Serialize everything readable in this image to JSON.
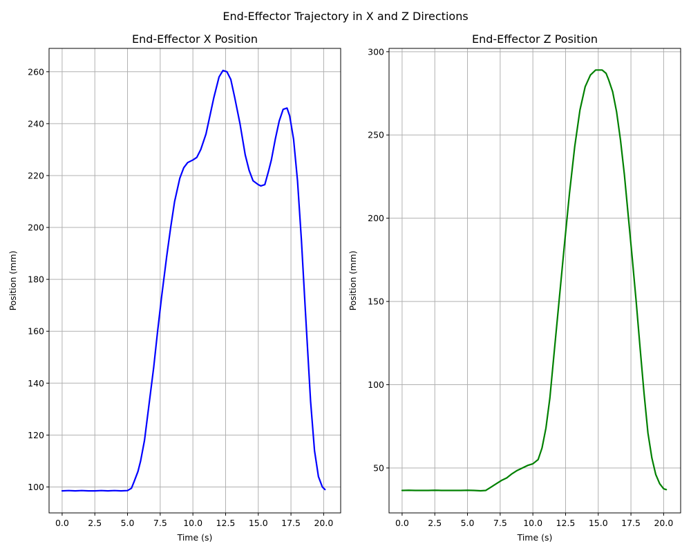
{
  "figure": {
    "suptitle": "End-Effector Trajectory in X and Z Directions"
  },
  "chart_data": [
    {
      "type": "line",
      "title": "End-Effector X Position",
      "xlabel": "Time (s)",
      "ylabel": "Position (mm)",
      "xlim": [
        -1.0,
        21.3
      ],
      "ylim": [
        90,
        269
      ],
      "xticks": [
        0.0,
        2.5,
        5.0,
        7.5,
        10.0,
        12.5,
        15.0,
        17.5,
        20.0
      ],
      "xtick_labels": [
        "0.0",
        "2.5",
        "5.0",
        "7.5",
        "10.0",
        "12.5",
        "15.0",
        "17.5",
        "20.0"
      ],
      "yticks": [
        100,
        120,
        140,
        160,
        180,
        200,
        220,
        240,
        260
      ],
      "ytick_labels": [
        "100",
        "120",
        "140",
        "160",
        "180",
        "200",
        "220",
        "240",
        "260"
      ],
      "grid": true,
      "series": [
        {
          "color": "#0000ff",
          "x": [
            0.0,
            0.5,
            1.0,
            1.5,
            2.0,
            2.5,
            3.0,
            3.5,
            4.0,
            4.5,
            5.0,
            5.3,
            5.5,
            5.8,
            6.0,
            6.3,
            6.6,
            7.0,
            7.3,
            7.6,
            8.0,
            8.3,
            8.6,
            9.0,
            9.3,
            9.6,
            10.0,
            10.3,
            10.6,
            11.0,
            11.3,
            11.6,
            12.0,
            12.3,
            12.6,
            12.9,
            13.2,
            13.6,
            14.0,
            14.3,
            14.6,
            15.0,
            15.2,
            15.5,
            15.8,
            16.0,
            16.3,
            16.6,
            16.9,
            17.2,
            17.4,
            17.7,
            18.0,
            18.3,
            18.6,
            19.0,
            19.3,
            19.6,
            19.9,
            20.1
          ],
          "y": [
            98.5,
            98.6,
            98.5,
            98.6,
            98.5,
            98.5,
            98.6,
            98.5,
            98.6,
            98.5,
            98.6,
            99.5,
            102,
            106,
            110,
            118,
            130,
            146,
            160,
            173,
            189,
            200,
            210,
            219,
            223,
            225,
            226,
            227,
            230,
            236,
            243,
            250,
            258,
            260.5,
            260,
            257,
            250,
            240,
            228,
            222,
            218,
            216.5,
            216,
            216.5,
            222,
            226,
            234,
            241,
            245.5,
            246,
            243,
            234,
            218,
            195,
            168,
            133,
            114,
            104,
            100,
            99
          ]
        }
      ]
    },
    {
      "type": "line",
      "title": "End-Effector Z Position",
      "xlabel": "Time (s)",
      "ylabel": "Position (mm)",
      "xlim": [
        -1.0,
        21.3
      ],
      "ylim": [
        23,
        302
      ],
      "xticks": [
        0.0,
        2.5,
        5.0,
        7.5,
        10.0,
        12.5,
        15.0,
        17.5,
        20.0
      ],
      "xtick_labels": [
        "0.0",
        "2.5",
        "5.0",
        "7.5",
        "10.0",
        "12.5",
        "15.0",
        "17.5",
        "20.0"
      ],
      "yticks": [
        50,
        100,
        150,
        200,
        250,
        300
      ],
      "ytick_labels": [
        "50",
        "100",
        "150",
        "200",
        "250",
        "300"
      ],
      "grid": true,
      "series": [
        {
          "color": "#008000",
          "x": [
            0.0,
            0.5,
            1.0,
            1.5,
            2.0,
            2.5,
            3.0,
            3.5,
            4.0,
            4.5,
            5.0,
            5.5,
            6.0,
            6.4,
            6.8,
            7.2,
            7.6,
            8.0,
            8.4,
            8.8,
            9.2,
            9.6,
            10.0,
            10.4,
            10.7,
            11.0,
            11.3,
            11.6,
            12.0,
            12.4,
            12.8,
            13.2,
            13.6,
            14.0,
            14.4,
            14.8,
            15.0,
            15.3,
            15.6,
            15.8,
            16.1,
            16.4,
            16.7,
            17.0,
            17.3,
            17.6,
            17.9,
            18.2,
            18.5,
            18.8,
            19.1,
            19.4,
            19.7,
            20.0,
            20.2
          ],
          "y": [
            36.5,
            36.6,
            36.5,
            36.5,
            36.5,
            36.6,
            36.5,
            36.5,
            36.5,
            36.5,
            36.6,
            36.5,
            36.3,
            36.5,
            38.5,
            40.5,
            42.5,
            44,
            46.5,
            48.5,
            50,
            51.5,
            52.5,
            55,
            62,
            74,
            92,
            117,
            150,
            183,
            215,
            243,
            265,
            279,
            286,
            289,
            289,
            289,
            287,
            283,
            276,
            264,
            247,
            226,
            201,
            176,
            150,
            122,
            95,
            71,
            56,
            46,
            40.5,
            37.5,
            37
          ]
        }
      ]
    }
  ]
}
